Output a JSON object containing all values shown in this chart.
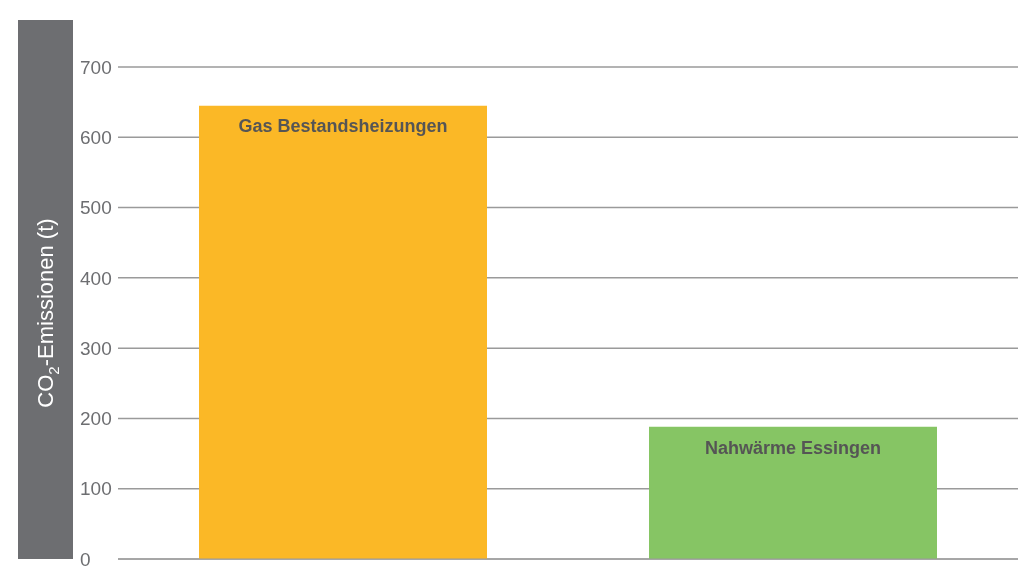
{
  "chart_data": {
    "type": "bar",
    "ylabel": "CO$_{2}$-Emissionen (t)",
    "categories": [
      "Gas Bestandsheizungen",
      "Nahwärme Essingen"
    ],
    "values": [
      645,
      188
    ],
    "colors": [
      "#fbb826",
      "#86c564"
    ],
    "ylim": [
      0,
      700
    ],
    "yticks": [
      0,
      100,
      200,
      300,
      400,
      500,
      600,
      700
    ],
    "grid": "y"
  }
}
